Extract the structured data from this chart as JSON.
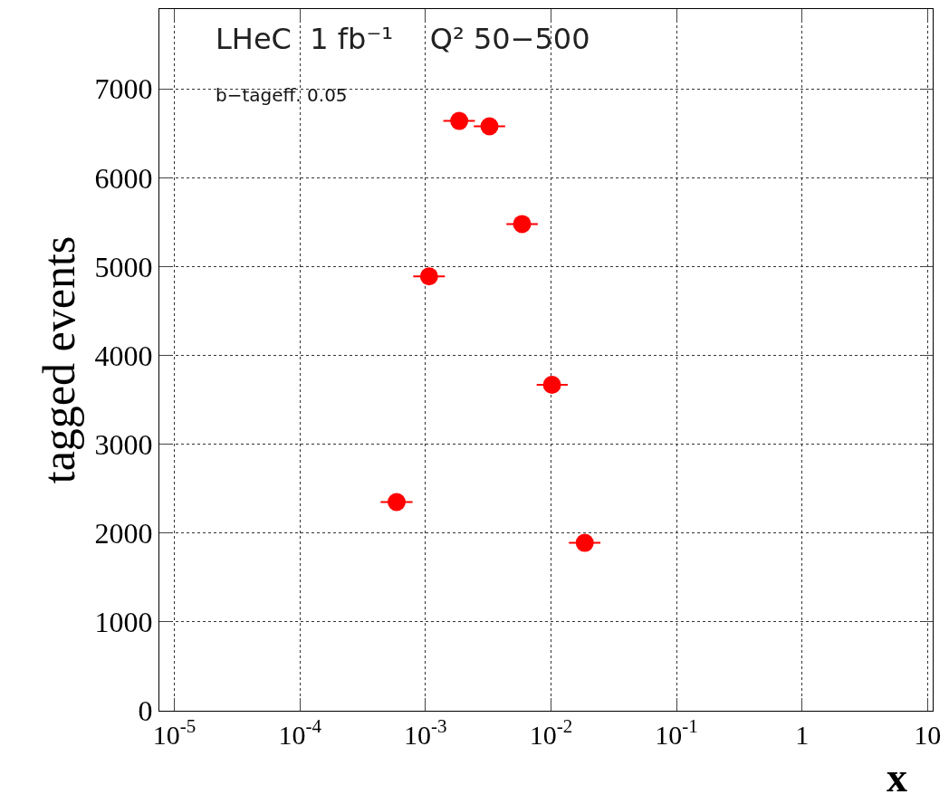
{
  "chart_data": {
    "type": "scatter",
    "title": "LHeC  1 fb⁻¹    Q² 50−500",
    "annotations": [
      "b−tageff. 0.05"
    ],
    "xlabel": "x",
    "ylabel": "tagged events",
    "log": "x",
    "x": [
      0.00059,
      0.00107,
      0.00186,
      0.00324,
      0.00589,
      0.0102,
      0.0186
    ],
    "series": [
      {
        "color": "#ff0000",
        "values": [
          2350,
          4890,
          6640,
          6580,
          5480,
          3670,
          1890
        ],
        "xerrors": [
          [
            0.00044,
            0.00079
          ],
          [
            0.0008,
            0.00143
          ],
          [
            0.00139,
            0.00248
          ],
          [
            0.00243,
            0.00432
          ],
          [
            0.00442,
            0.00786
          ],
          [
            0.0077,
            0.0136
          ],
          [
            0.0139,
            0.0248
          ]
        ]
      }
    ],
    "marker": "circle",
    "xlim": [
      7.6e-06,
      11
    ],
    "ylim": [
      0,
      7900
    ],
    "xticks": [
      {
        "value": 1e-05,
        "label": "10$^{-5}$"
      },
      {
        "value": 0.0001,
        "label": "10$^{-4}$"
      },
      {
        "value": 0.001,
        "label": "10$^{-3}$"
      },
      {
        "value": 0.01,
        "label": "10$^{-2}$"
      },
      {
        "value": 0.1,
        "label": "10$^{-1}$"
      },
      {
        "value": 1,
        "label": "1"
      },
      {
        "value": 10,
        "label": "10"
      }
    ],
    "yticks": [
      0,
      1000,
      2000,
      3000,
      4000,
      5000,
      6000,
      7000
    ],
    "grid": true
  }
}
